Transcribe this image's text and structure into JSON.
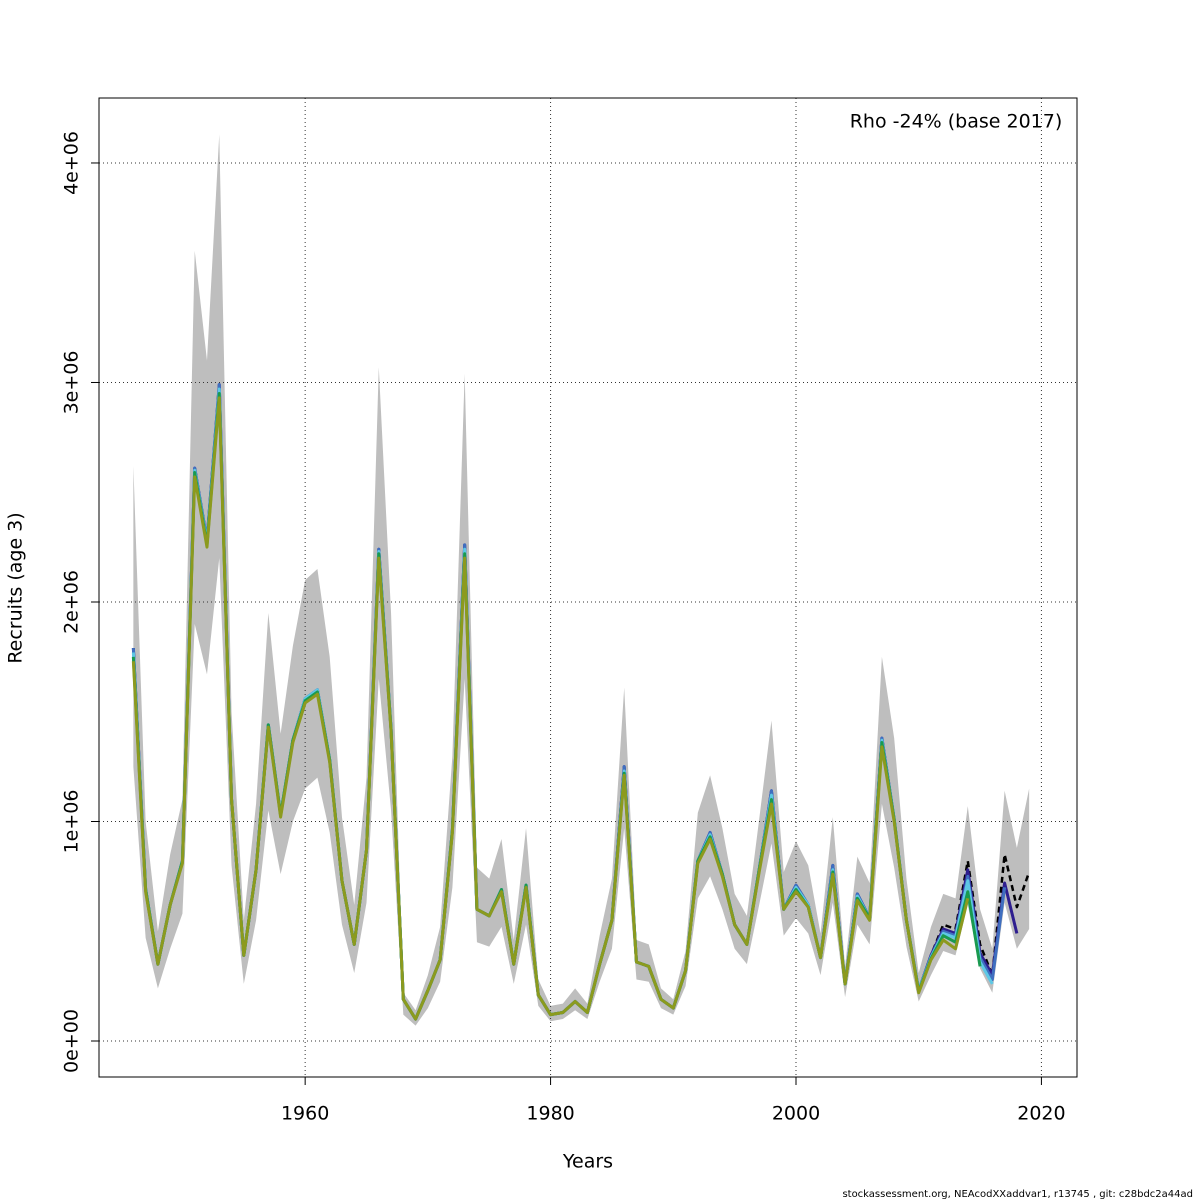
{
  "chart_data": {
    "type": "line",
    "xlabel": "Years",
    "ylabel": "Recruits (age 3)",
    "annotation": "Rho -24% (base 2017)",
    "footer": "stockassessment.org, NEAcodXXaddvar1, r13745 , git: c28bdc2a44ad",
    "xlim": [
      1943.2,
      2022.9
    ],
    "ylim": [
      -164000,
      4296000
    ],
    "xticks": [
      1960,
      1980,
      2000,
      2020
    ],
    "yticks": [
      {
        "value": 0,
        "label": "0e+00"
      },
      {
        "value": 1000000,
        "label": "1e+06"
      },
      {
        "value": 2000000,
        "label": "2e+06"
      },
      {
        "value": 3000000,
        "label": "3e+06"
      },
      {
        "value": 4000000,
        "label": "4e+06"
      }
    ],
    "grid": true,
    "x": [
      1946,
      1947,
      1948,
      1949,
      1950,
      1951,
      1952,
      1953,
      1954,
      1955,
      1956,
      1957,
      1958,
      1959,
      1960,
      1961,
      1962,
      1963,
      1964,
      1965,
      1966,
      1967,
      1968,
      1969,
      1970,
      1971,
      1972,
      1973,
      1974,
      1975,
      1976,
      1977,
      1978,
      1979,
      1980,
      1981,
      1982,
      1983,
      1984,
      1985,
      1986,
      1987,
      1988,
      1989,
      1990,
      1991,
      1992,
      1993,
      1994,
      1995,
      1996,
      1997,
      1998,
      1999,
      2000,
      2001,
      2002,
      2003,
      2004,
      2005,
      2006,
      2007,
      2008,
      2009,
      2010,
      2011,
      2012,
      2013,
      2014,
      2015,
      2016,
      2017,
      2018,
      2019
    ],
    "band": {
      "color": "#bebebe",
      "lower": [
        1250000,
        470000,
        240000,
        420000,
        580000,
        1900000,
        1670000,
        2200000,
        800000,
        260000,
        550000,
        1050000,
        760000,
        1000000,
        1150000,
        1200000,
        950000,
        530000,
        310000,
        630000,
        1650000,
        1050000,
        120000,
        70000,
        150000,
        270000,
        700000,
        1650000,
        450000,
        430000,
        520000,
        260000,
        530000,
        160000,
        90000,
        100000,
        140000,
        100000,
        270000,
        420000,
        970000,
        280000,
        270000,
        150000,
        120000,
        250000,
        650000,
        750000,
        600000,
        420000,
        350000,
        620000,
        900000,
        480000,
        560000,
        490000,
        300000,
        630000,
        200000,
        530000,
        440000,
        1080000,
        790000,
        430000,
        180000,
        300000,
        410000,
        390000,
        620000,
        330000,
        220000,
        630000,
        420000,
        510000
      ],
      "upper": [
        2620000,
        1000000,
        500000,
        850000,
        1100000,
        3600000,
        3100000,
        4130000,
        1500000,
        550000,
        1080000,
        1950000,
        1400000,
        1800000,
        2100000,
        2150000,
        1750000,
        1020000,
        620000,
        1200000,
        3070000,
        1950000,
        220000,
        140000,
        300000,
        520000,
        1300000,
        3040000,
        790000,
        740000,
        920000,
        460000,
        970000,
        280000,
        160000,
        170000,
        240000,
        170000,
        480000,
        740000,
        1610000,
        460000,
        440000,
        240000,
        190000,
        410000,
        1040000,
        1210000,
        970000,
        670000,
        570000,
        1010000,
        1460000,
        770000,
        910000,
        800000,
        490000,
        1020000,
        340000,
        840000,
        720000,
        1750000,
        1380000,
        740000,
        310000,
        520000,
        670000,
        650000,
        1070000,
        600000,
        420000,
        1140000,
        880000,
        1150000
      ]
    },
    "series": [
      {
        "color": "#000000",
        "dashed": true,
        "values": [
          1790000,
          690000,
          350000,
          620000,
          820000,
          2610000,
          2280000,
          2990000,
          1100000,
          390000,
          780000,
          1440000,
          1030000,
          1370000,
          1560000,
          1600000,
          1280000,
          730000,
          440000,
          870000,
          2240000,
          1420000,
          190000,
          100000,
          230000,
          370000,
          960000,
          2260000,
          600000,
          570000,
          690000,
          350000,
          710000,
          210000,
          120000,
          130000,
          180000,
          130000,
          350000,
          550000,
          1250000,
          360000,
          340000,
          190000,
          150000,
          320000,
          820000,
          950000,
          760000,
          530000,
          440000,
          780000,
          1140000,
          600000,
          710000,
          620000,
          380000,
          800000,
          260000,
          670000,
          560000,
          1380000,
          1010000,
          550000,
          230000,
          390000,
          530000,
          510000,
          820000,
          440000,
          300000,
          850000,
          610000,
          770000
        ]
      },
      {
        "color": "#2e1e8f",
        "values": [
          1790000,
          690000,
          350000,
          620000,
          820000,
          2610000,
          2280000,
          2990000,
          1100000,
          390000,
          780000,
          1440000,
          1030000,
          1370000,
          1560000,
          1600000,
          1280000,
          730000,
          440000,
          870000,
          2240000,
          1420000,
          190000,
          100000,
          230000,
          370000,
          960000,
          2260000,
          600000,
          570000,
          690000,
          350000,
          710000,
          210000,
          120000,
          130000,
          180000,
          130000,
          350000,
          550000,
          1250000,
          360000,
          340000,
          190000,
          150000,
          320000,
          820000,
          950000,
          760000,
          530000,
          440000,
          780000,
          1140000,
          600000,
          710000,
          620000,
          380000,
          800000,
          260000,
          670000,
          560000,
          1380000,
          1010000,
          550000,
          230000,
          390000,
          510000,
          490000,
          780000,
          400000,
          300000,
          720000,
          490000,
          null
        ]
      },
      {
        "color": "#3f6fc0",
        "values": [
          1790000,
          690000,
          350000,
          620000,
          820000,
          2610000,
          2280000,
          2990000,
          1100000,
          390000,
          780000,
          1440000,
          1030000,
          1370000,
          1560000,
          1600000,
          1280000,
          730000,
          440000,
          870000,
          2240000,
          1420000,
          190000,
          100000,
          230000,
          370000,
          960000,
          2260000,
          600000,
          570000,
          690000,
          350000,
          710000,
          210000,
          120000,
          130000,
          180000,
          130000,
          350000,
          550000,
          1250000,
          360000,
          340000,
          190000,
          150000,
          320000,
          820000,
          950000,
          760000,
          530000,
          440000,
          780000,
          1140000,
          600000,
          710000,
          620000,
          380000,
          800000,
          260000,
          670000,
          560000,
          1380000,
          1010000,
          550000,
          230000,
          385000,
          500000,
          480000,
          750000,
          380000,
          280000,
          700000,
          null,
          null
        ]
      },
      {
        "color": "#5ec8e5",
        "values": [
          1770000,
          690000,
          350000,
          620000,
          820000,
          2600000,
          2270000,
          2970000,
          1100000,
          390000,
          780000,
          1440000,
          1030000,
          1370000,
          1560000,
          1600000,
          1280000,
          730000,
          440000,
          870000,
          2230000,
          1420000,
          190000,
          100000,
          230000,
          370000,
          960000,
          2240000,
          600000,
          570000,
          690000,
          350000,
          710000,
          210000,
          120000,
          130000,
          180000,
          130000,
          350000,
          550000,
          1230000,
          360000,
          340000,
          190000,
          150000,
          320000,
          820000,
          940000,
          760000,
          530000,
          440000,
          780000,
          1120000,
          600000,
          700000,
          620000,
          380000,
          780000,
          260000,
          660000,
          560000,
          1370000,
          1010000,
          550000,
          230000,
          380000,
          490000,
          470000,
          730000,
          360000,
          260000,
          null,
          null,
          null
        ]
      },
      {
        "color": "#1a9a50",
        "values": [
          1750000,
          690000,
          350000,
          620000,
          820000,
          2590000,
          2260000,
          2950000,
          1100000,
          390000,
          780000,
          1440000,
          1030000,
          1370000,
          1550000,
          1590000,
          1280000,
          730000,
          440000,
          870000,
          2220000,
          1420000,
          190000,
          100000,
          230000,
          370000,
          960000,
          2220000,
          600000,
          570000,
          690000,
          350000,
          710000,
          210000,
          120000,
          130000,
          180000,
          130000,
          350000,
          550000,
          1220000,
          360000,
          340000,
          190000,
          150000,
          320000,
          820000,
          930000,
          760000,
          530000,
          440000,
          780000,
          1100000,
          600000,
          690000,
          610000,
          380000,
          770000,
          260000,
          650000,
          560000,
          1360000,
          1010000,
          550000,
          225000,
          375000,
          480000,
          450000,
          680000,
          340000,
          null,
          null,
          null,
          null
        ]
      },
      {
        "color": "#8c9a1e",
        "values": [
          1730000,
          680000,
          350000,
          620000,
          810000,
          2570000,
          2250000,
          2930000,
          1100000,
          390000,
          780000,
          1430000,
          1020000,
          1360000,
          1540000,
          1580000,
          1270000,
          730000,
          440000,
          870000,
          2200000,
          1410000,
          190000,
          100000,
          230000,
          370000,
          950000,
          2200000,
          600000,
          570000,
          680000,
          350000,
          700000,
          210000,
          120000,
          130000,
          180000,
          130000,
          350000,
          550000,
          1210000,
          360000,
          340000,
          190000,
          150000,
          320000,
          810000,
          920000,
          750000,
          530000,
          440000,
          770000,
          1080000,
          600000,
          680000,
          610000,
          380000,
          760000,
          260000,
          640000,
          550000,
          1340000,
          1000000,
          550000,
          220000,
          370000,
          460000,
          420000,
          650000,
          null,
          null,
          null,
          null,
          null
        ]
      }
    ]
  }
}
